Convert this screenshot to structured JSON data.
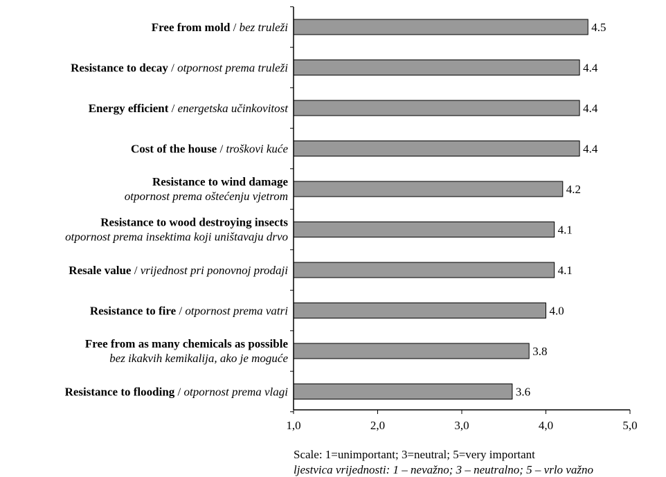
{
  "chart_data": {
    "type": "bar",
    "orientation": "horizontal",
    "title": "",
    "xlabel": "",
    "ylabel": "",
    "xlim": [
      1,
      5
    ],
    "ticks": [
      "1,0",
      "2,0",
      "3,0",
      "4,0",
      "5,0"
    ],
    "grid": false,
    "bar_color": "#999999",
    "categories": [
      {
        "en": "Free from mold",
        "hr": "bez truleži",
        "layout": "inline",
        "value": 4.5,
        "label": "4.5"
      },
      {
        "en": "Resistance to decay",
        "hr": "otpornost prema truleži",
        "layout": "inline",
        "value": 4.4,
        "label": "4.4"
      },
      {
        "en": "Energy efficient",
        "hr": "energetska učinkovitost",
        "layout": "inline",
        "value": 4.4,
        "label": "4.4"
      },
      {
        "en": "Cost of the house",
        "hr": "troškovi kuće",
        "layout": "inline",
        "value": 4.4,
        "label": "4.4"
      },
      {
        "en": "Resistance to wind damage",
        "hr": "otpornost prema oštećenju vjetrom",
        "layout": "stacked",
        "value": 4.2,
        "label": "4.2"
      },
      {
        "en": "Resistance to wood destroying insects",
        "hr": "otpornost prema insektima koji uništavaju drvo",
        "layout": "stacked",
        "value": 4.1,
        "label": "4.1"
      },
      {
        "en": "Resale value",
        "hr": "vrijednost pri ponovnoj prodaji",
        "layout": "inline",
        "value": 4.1,
        "label": "4.1"
      },
      {
        "en": "Resistance to fire",
        "hr": "otpornost prema vatri",
        "layout": "inline",
        "value": 4.0,
        "label": "4.0"
      },
      {
        "en": "Free from as many chemicals as possible",
        "hr": "bez ikakvih kemikalija, ako je moguće",
        "layout": "stacked",
        "value": 3.8,
        "label": "3.8"
      },
      {
        "en": "Resistance to flooding",
        "hr": "otpornost prema vlagi",
        "layout": "inline",
        "value": 3.6,
        "label": "3.6"
      }
    ],
    "separator": " / ",
    "note_en": "Scale: 1=unimportant; 3=neutral; 5=very important",
    "note_hr": "ljestvica vrijednosti: 1 – nevažno; 3 – neutralno; 5 – vrlo važno"
  }
}
